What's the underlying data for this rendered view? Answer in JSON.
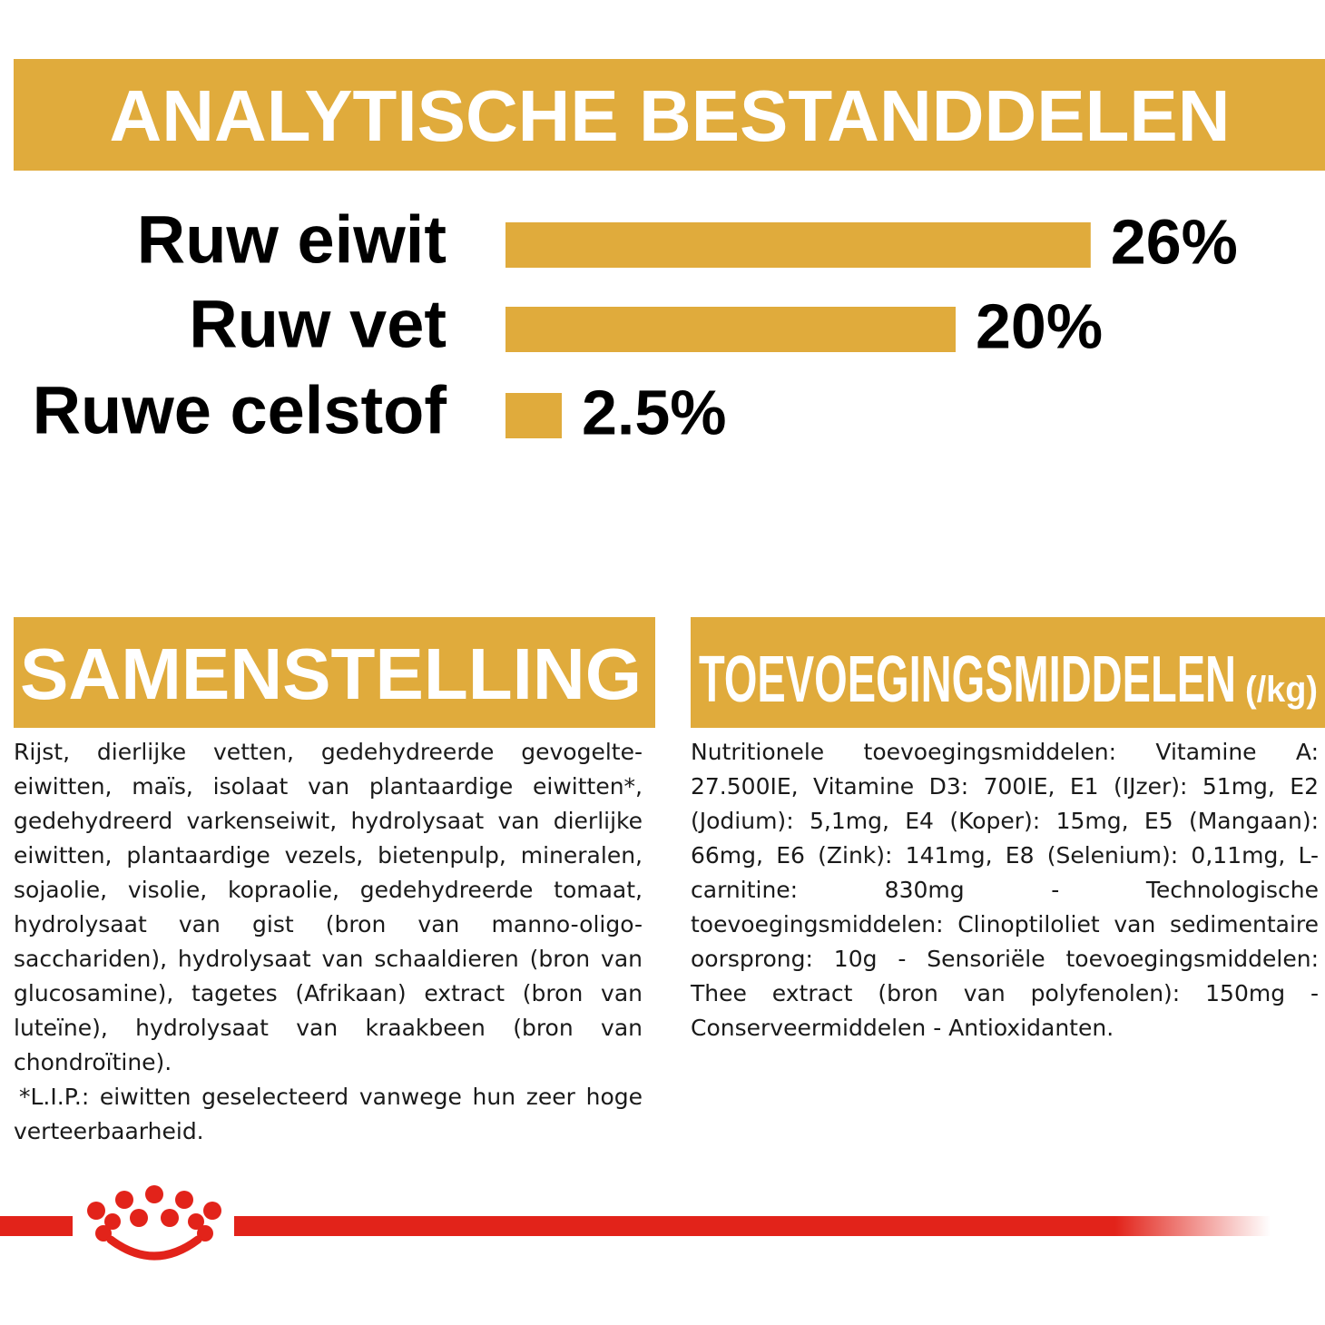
{
  "chart_data": {
    "type": "bar",
    "title": "ANALYTISCHE BESTANDDELEN",
    "categories": [
      "Ruw eiwit",
      "Ruw vet",
      "Ruwe celstof"
    ],
    "values": [
      26,
      20,
      2.5
    ],
    "value_labels": [
      "26%",
      "20%",
      "2.5%"
    ],
    "color": "#e0ab3c"
  },
  "composition": {
    "title": "SAMENSTELLING",
    "text": "Rijst, dierlijke vetten, gedehydreerde gevogelte-eiwitten, maïs, isolaat van plantaardige eiwitten*, gedehydreerd varkenseiwit, hydrolysaat van dierlijke eiwitten, plantaardige vezels, bietenpulp, mineralen, sojaolie, visolie, kopraolie, gedehydreerde tomaat, hydrolysaat van gist (bron van manno-oligo-sacchariden), hydrolysaat van schaaldieren (bron van glucosamine), tagetes (Afrikaan) extract (bron van luteïne), hydrolysaat van kraakbeen (bron van chondroïtine).",
    "note": "*L.I.P.: eiwitten geselecteerd vanwege hun zeer hoge verteerbaarheid."
  },
  "additives": {
    "title": "TOEVOEGINGSMIDDELEN",
    "unit": "(/kg)",
    "text": "Nutritionele toevoegingsmiddelen: Vitamine A: 27.500IE, Vitamine D3: 700IE, E1 (IJzer): 51mg, E2 (Jodium): 5,1mg, E4 (Koper): 15mg, E5 (Mangaan): 66mg, E6 (Zink): 141mg, E8 (Selenium): 0,11mg, L-carnitine: 830mg - Technologische toevoegingsmiddelen: Clinoptiloliet van sedimentaire oorsprong: 10g - Sensoriële toevoegingsmiddelen: Thee extract (bron van polyfenolen): 150mg - Conserveermiddelen - Antioxidanten."
  }
}
